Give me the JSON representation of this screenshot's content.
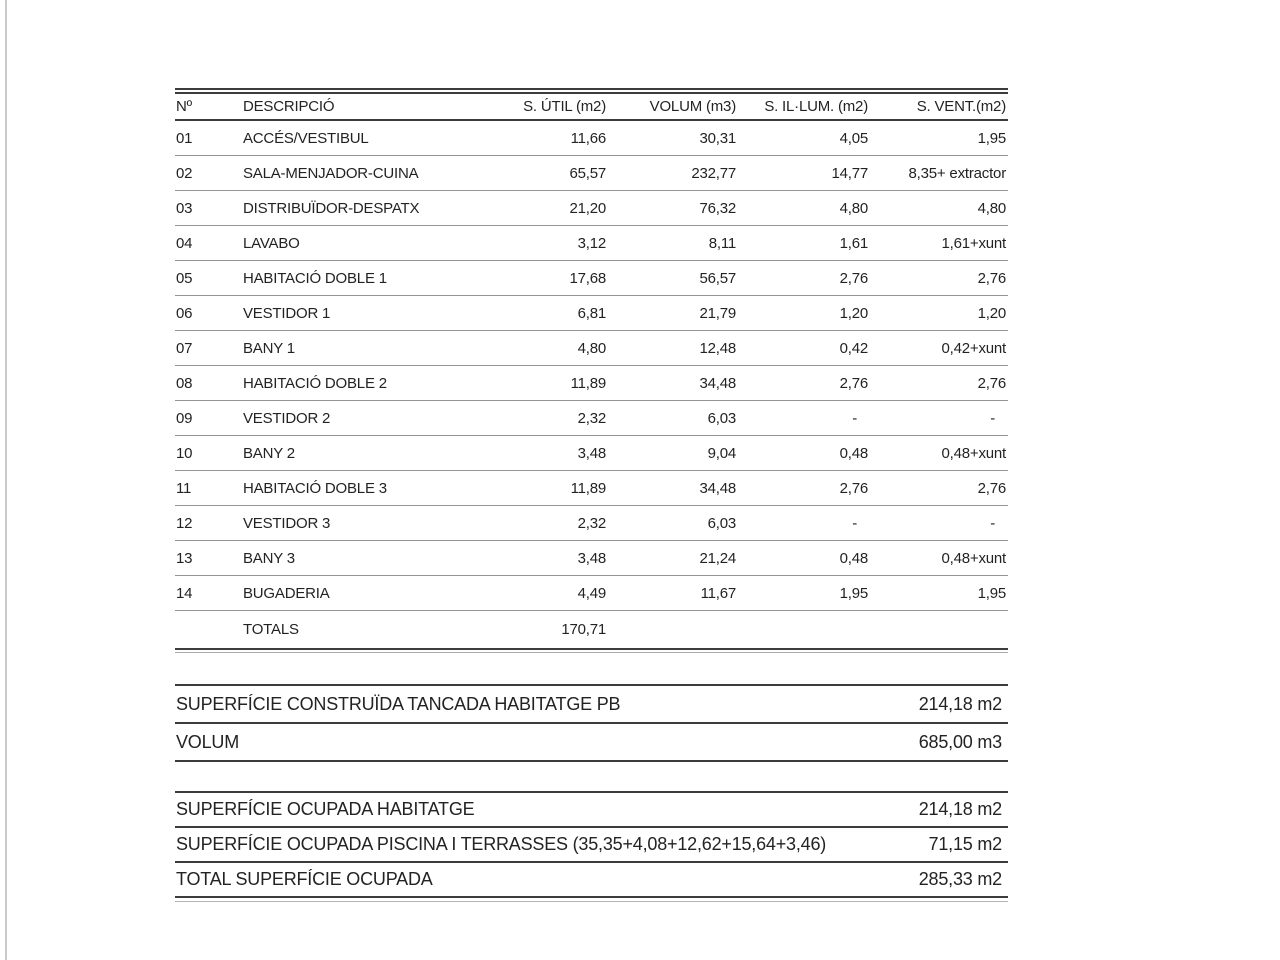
{
  "page": {
    "background_color": "#ffffff",
    "text_color": "#232323",
    "rule_dark_color": "#3c3c3c",
    "rule_light_color": "#949494",
    "left_margin_line_color": "#cbcbcb"
  },
  "table": {
    "columns": {
      "num": "Nº",
      "desc": "DESCRIPCIÓ",
      "util": "S. ÚTIL (m2)",
      "volum": "VOLUM (m3)",
      "illum": "S. IL·LUM. (m2)",
      "vent": "S. VENT.(m2)"
    },
    "rows": [
      {
        "num": "01",
        "desc": "ACCÉS/VESTIBUL",
        "util": "11,66",
        "volum": "30,31",
        "illum": "4,05",
        "vent": "1,95"
      },
      {
        "num": "02",
        "desc": "SALA-MENJADOR-CUINA",
        "util": "65,57",
        "volum": "232,77",
        "illum": "14,77",
        "vent": "8,35+ extractor"
      },
      {
        "num": "03",
        "desc": "DISTRIBUÏDOR-DESPATX",
        "util": "21,20",
        "volum": "76,32",
        "illum": "4,80",
        "vent": "4,80"
      },
      {
        "num": "04",
        "desc": "LAVABO",
        "util": "3,12",
        "volum": "8,11",
        "illum": "1,61",
        "vent": "1,61+xunt"
      },
      {
        "num": "05",
        "desc": "HABITACIÓ DOBLE 1",
        "util": "17,68",
        "volum": "56,57",
        "illum": "2,76",
        "vent": "2,76"
      },
      {
        "num": "06",
        "desc": "VESTIDOR 1",
        "util": "6,81",
        "volum": "21,79",
        "illum": "1,20",
        "vent": "1,20"
      },
      {
        "num": "07",
        "desc": "BANY 1",
        "util": "4,80",
        "volum": "12,48",
        "illum": "0,42",
        "vent": "0,42+xunt"
      },
      {
        "num": "08",
        "desc": "HABITACIÓ DOBLE 2",
        "util": "11,89",
        "volum": "34,48",
        "illum": "2,76",
        "vent": "2,76"
      },
      {
        "num": "09",
        "desc": "VESTIDOR 2",
        "util": "2,32",
        "volum": "6,03",
        "illum": "-",
        "vent": "-"
      },
      {
        "num": "10",
        "desc": "BANY 2",
        "util": "3,48",
        "volum": "9,04",
        "illum": "0,48",
        "vent": "0,48+xunt"
      },
      {
        "num": "11",
        "desc": "HABITACIÓ DOBLE 3",
        "util": "11,89",
        "volum": "34,48",
        "illum": "2,76",
        "vent": "2,76"
      },
      {
        "num": "12",
        "desc": "VESTIDOR 3",
        "util": "2,32",
        "volum": "6,03",
        "illum": "-",
        "vent": "-"
      },
      {
        "num": "13",
        "desc": "BANY 3",
        "util": "3,48",
        "volum": "21,24",
        "illum": "0,48",
        "vent": "0,48+xunt"
      },
      {
        "num": "14",
        "desc": "BUGADERIA",
        "util": "4,49",
        "volum": "11,67",
        "illum": "1,95",
        "vent": "1,95"
      }
    ],
    "totals": {
      "label": "TOTALS",
      "util": "170,71"
    }
  },
  "summary_construction": {
    "rows": [
      {
        "label": "SUPERFÍCIE CONSTRUÏDA TANCADA HABITATGE PB",
        "value": "214,18 m2"
      },
      {
        "label": "VOLUM",
        "value": "685,00 m3"
      }
    ]
  },
  "summary_occupation": {
    "rows": [
      {
        "label": "SUPERFÍCIE OCUPADA HABITATGE",
        "value": "214,18 m2"
      },
      {
        "label": "SUPERFÍCIE OCUPADA PISCINA I TERRASSES (35,35+4,08+12,62+15,64+3,46)",
        "value": "71,15 m2"
      },
      {
        "label": "TOTAL SUPERFÍCIE OCUPADA",
        "value": "285,33 m2"
      }
    ]
  }
}
